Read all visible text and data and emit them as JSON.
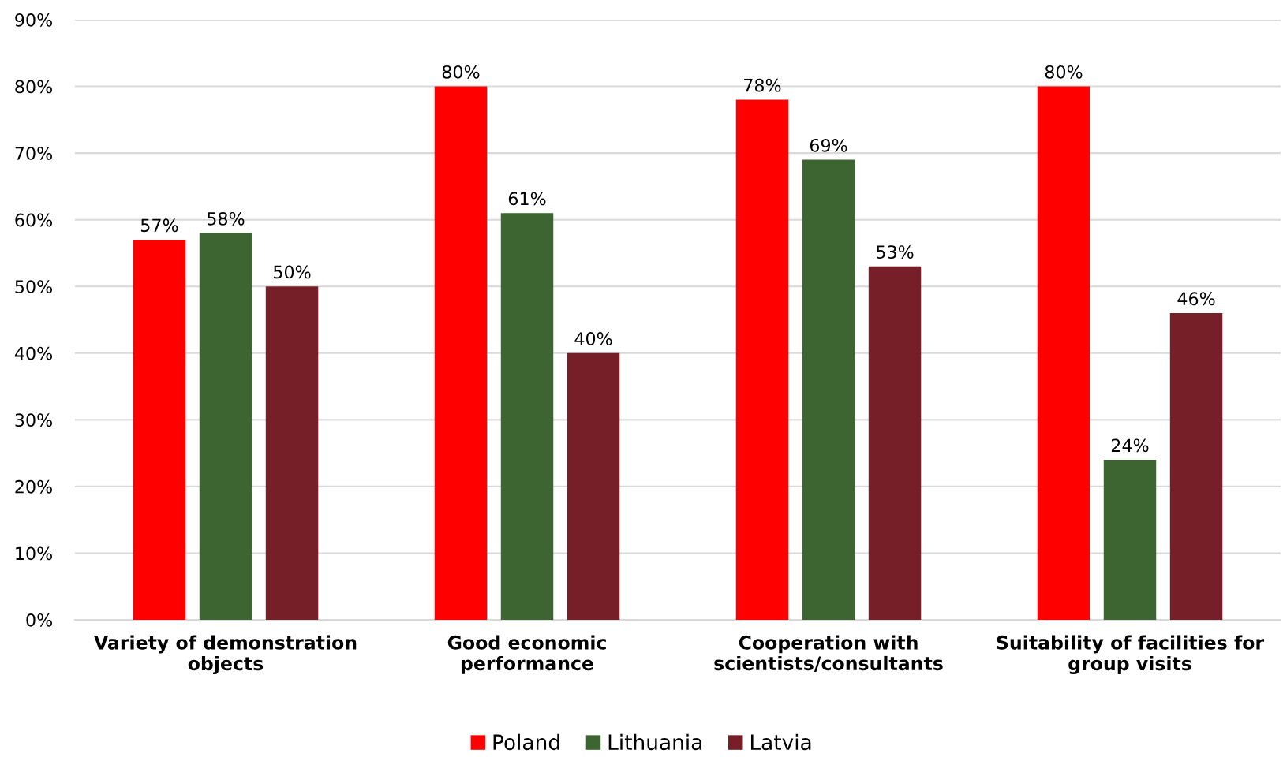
{
  "chart_data": {
    "type": "bar",
    "categories": [
      "Variety of demonstration\nobjects",
      "Good economic\nperformance",
      "Cooperation with\nscientists/consultants",
      "Suitability of facilities for\ngroup visits"
    ],
    "series": [
      {
        "name": "Poland",
        "color": "#ff0000",
        "values": [
          57,
          80,
          78,
          80
        ],
        "value_labels": [
          "57%",
          "80%",
          "78%",
          "80%"
        ]
      },
      {
        "name": "Lithuania",
        "color": "#3d6531",
        "values": [
          58,
          61,
          69,
          24
        ],
        "value_labels": [
          "58%",
          "61%",
          "69%",
          "24%"
        ]
      },
      {
        "name": "Latvia",
        "color": "#761f28",
        "values": [
          50,
          40,
          53,
          46
        ],
        "value_labels": [
          "50%",
          "40%",
          "53%",
          "46%"
        ]
      }
    ],
    "ylim": [
      0,
      90
    ],
    "yticks": [
      {
        "value": 0,
        "label": "0%"
      },
      {
        "value": 10,
        "label": "10%"
      },
      {
        "value": 20,
        "label": "20%"
      },
      {
        "value": 30,
        "label": "30%"
      },
      {
        "value": 40,
        "label": "40%"
      },
      {
        "value": 50,
        "label": "50%"
      },
      {
        "value": 60,
        "label": "60%"
      },
      {
        "value": 70,
        "label": "70%"
      },
      {
        "value": 80,
        "label": "80%"
      },
      {
        "value": 90,
        "label": "90%"
      }
    ],
    "grid": "y",
    "legend": "bottom"
  }
}
